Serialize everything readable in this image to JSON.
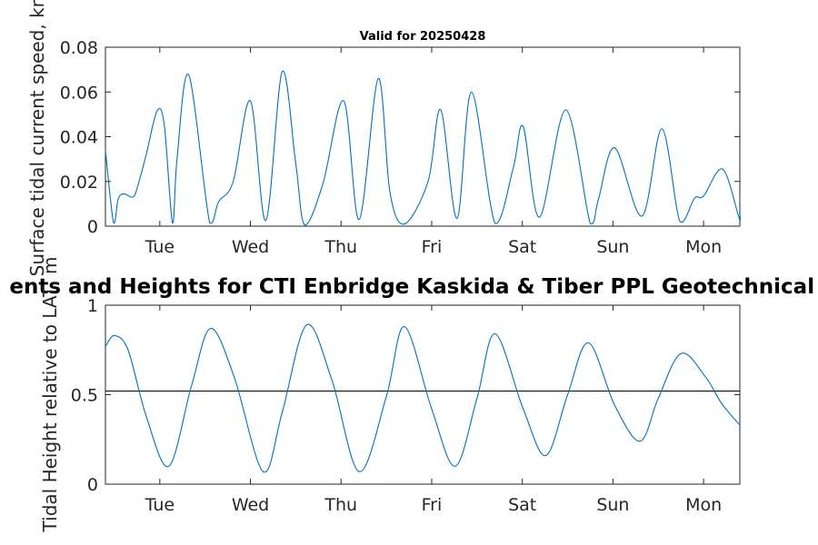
{
  "chart_data": [
    {
      "type": "line",
      "title": "Valid for 20250428",
      "ylabel": "Surface tidal current speed, kn",
      "xlabel": "",
      "ylim": [
        0,
        0.08
      ],
      "yticks": [
        0,
        0.02,
        0.04,
        0.06,
        0.08
      ],
      "ytick_labels": [
        "0",
        "0.02",
        "0.04",
        "0.06",
        "0.08"
      ],
      "xlim": [
        0,
        7
      ],
      "xticks": [
        0.6,
        1.6,
        2.6,
        3.6,
        4.6,
        5.6,
        6.6
      ],
      "xtick_labels": [
        "Tue",
        "Wed",
        "Thu",
        "Fri",
        "Sat",
        "Sun",
        "Mon"
      ],
      "grid": false,
      "legend": "none",
      "colors": {
        "line": "#0072BD",
        "axis": "#262626"
      },
      "series": [
        {
          "x": [
            0,
            0.09,
            0.14,
            0.2,
            0.3,
            0.35,
            0.45,
            0.57,
            0.65,
            0.74,
            0.79,
            0.92,
            1.15,
            1.25,
            1.41,
            1.6,
            1.77,
            1.95,
            2.1,
            2.2,
            2.4,
            2.63,
            2.8,
            3.01,
            3.14,
            3.3,
            3.56,
            3.7,
            3.88,
            4.04,
            4.3,
            4.5,
            4.61,
            4.79,
            5.08,
            5.35,
            5.44,
            5.62,
            5.92,
            6.14,
            6.34,
            6.5,
            6.6,
            6.81,
            6.99,
            7
          ],
          "y": [
            0.034,
            0.0015,
            0.012,
            0.0145,
            0.013,
            0.017,
            0.032,
            0.0515,
            0.045,
            0.0015,
            0.03,
            0.0675,
            0.0015,
            0.011,
            0.02,
            0.056,
            0.0025,
            0.069,
            0.028,
            0.0005,
            0.019,
            0.056,
            0.003,
            0.066,
            0.015,
            0.001,
            0.02,
            0.052,
            0.0035,
            0.06,
            0.0012,
            0.026,
            0.0445,
            0.004,
            0.052,
            0.0012,
            0.012,
            0.035,
            0.0045,
            0.0435,
            0.002,
            0.0125,
            0.0135,
            0.0255,
            0.004,
            0.0052
          ]
        }
      ]
    },
    {
      "type": "line",
      "title": "Tidal Currents and Heights for CTI Enbridge  Kaskida & Tiber PPL Geotechnical and Geophysical",
      "title_visible": "ents and Heights for CTI Enbridge  Kaskida & Tiber PPL Geotechnical a",
      "ylabel": "Tidal Height relative to LAT, m",
      "xlabel": "",
      "ylim": [
        0,
        1
      ],
      "yticks": [
        0,
        0.5,
        1
      ],
      "ytick_labels": [
        "0",
        "0.5",
        "1"
      ],
      "xlim": [
        0,
        7
      ],
      "xticks": [
        0.6,
        1.6,
        2.6,
        3.6,
        4.6,
        5.6,
        6.6
      ],
      "xtick_labels": [
        "Tue",
        "Wed",
        "Thu",
        "Fri",
        "Sat",
        "Sun",
        "Mon"
      ],
      "reference_line": 0.52,
      "grid": false,
      "legend": "none",
      "colors": {
        "line": "#0072BD",
        "reference": "#000000",
        "axis": "#262626"
      },
      "series": [
        {
          "x": [
            0,
            0.1,
            0.25,
            0.45,
            0.7,
            0.95,
            1.16,
            1.42,
            1.74,
            1.95,
            2.22,
            2.5,
            2.8,
            3.1,
            3.3,
            3.6,
            3.86,
            4.1,
            4.3,
            4.61,
            4.86,
            5.1,
            5.33,
            5.62,
            5.9,
            6.1,
            6.35,
            6.62,
            6.8,
            7
          ],
          "y": [
            0.77,
            0.83,
            0.75,
            0.38,
            0.1,
            0.55,
            0.87,
            0.6,
            0.07,
            0.4,
            0.89,
            0.58,
            0.07,
            0.49,
            0.88,
            0.42,
            0.1,
            0.48,
            0.84,
            0.42,
            0.16,
            0.5,
            0.79,
            0.44,
            0.24,
            0.48,
            0.73,
            0.6,
            0.45,
            0.33
          ]
        }
      ]
    }
  ]
}
